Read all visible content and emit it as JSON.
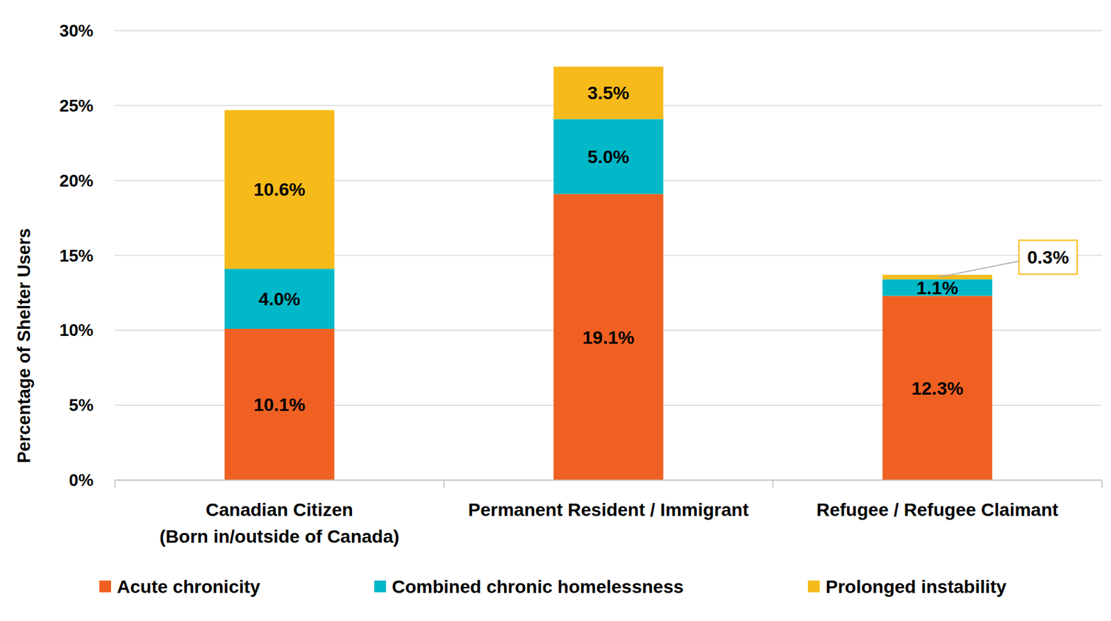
{
  "chart_data": {
    "type": "bar",
    "stacked": true,
    "data_labels": true,
    "grid": true,
    "legend": "bottom",
    "y_label": "Percentage of Shelter Users",
    "categories": [
      "Canadian Citizen\n(Born in/outside of Canada)",
      "Permanent Resident / Immigrant",
      "Refugee / Refugee Claimant"
    ],
    "ylim": [
      0,
      30
    ],
    "yticks": [
      {
        "value": 0,
        "label": "0%"
      },
      {
        "value": 5,
        "label": "5%"
      },
      {
        "value": 10,
        "label": "10%"
      },
      {
        "value": 15,
        "label": "15%"
      },
      {
        "value": 20,
        "label": "20%"
      },
      {
        "value": 25,
        "label": "25%"
      },
      {
        "value": 30,
        "label": "30%"
      }
    ],
    "series": [
      {
        "name": "Acute chronicity",
        "color": "#f06022",
        "values": [
          10.1,
          19.1,
          12.3
        ],
        "value_labels": [
          "10.1%",
          "19.1%",
          "12.3%"
        ]
      },
      {
        "name": "Combined chronic homelessness",
        "color": "#00b8c8",
        "values": [
          4.0,
          5.0,
          1.1
        ],
        "value_labels": [
          "4.0%",
          "5.0%",
          "1.1%"
        ]
      },
      {
        "name": "Prolonged instability",
        "color": "#f6ba1a",
        "values": [
          10.6,
          3.5,
          0.3
        ],
        "value_labels": [
          "10.6%",
          "3.5%",
          "0.3%"
        ]
      }
    ]
  }
}
